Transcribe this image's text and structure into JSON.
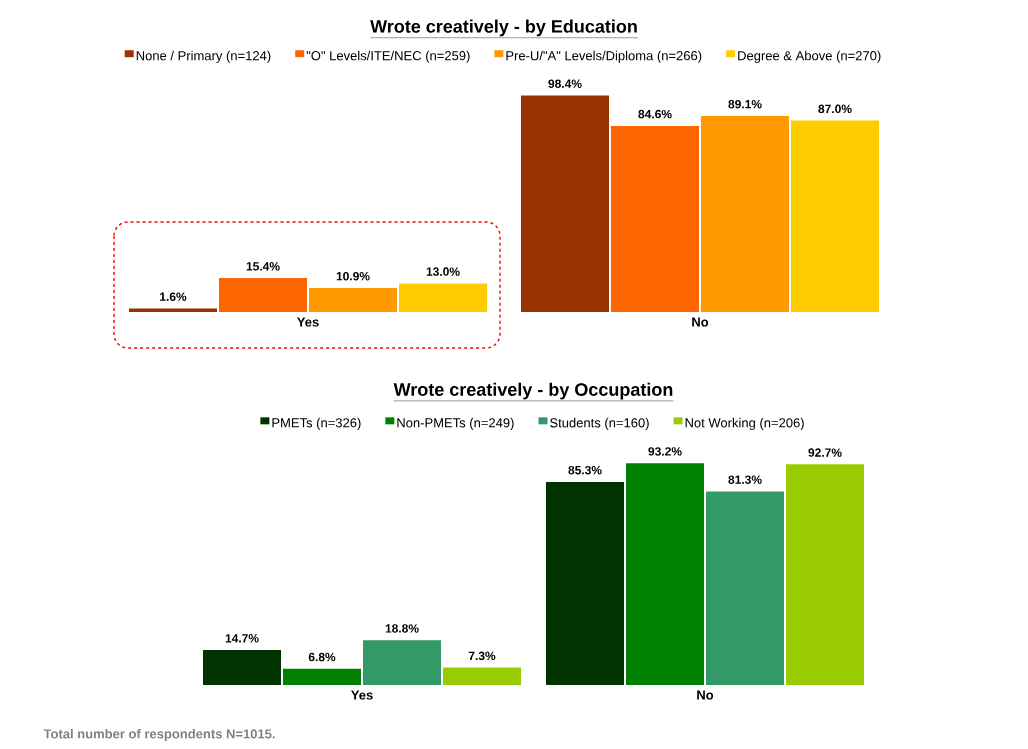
{
  "chart_data": [
    {
      "type": "bar",
      "title": "Wrote creatively - by Education",
      "categories": [
        "Yes",
        "No"
      ],
      "legend": "top",
      "series": [
        {
          "name": "None / Primary (n=124)",
          "color": "#993300",
          "values": [
            1.6,
            98.4
          ],
          "value_labels": [
            "1.6%",
            "98.4%"
          ]
        },
        {
          "name": "\"O\" Levels/ITE/NEC (n=259)",
          "color": "#ff6600",
          "values": [
            15.4,
            84.6
          ],
          "value_labels": [
            "15.4%",
            "84.6%"
          ]
        },
        {
          "name": "Pre-U/\"A\" Levels/Diploma (n=266)",
          "color": "#ff9900",
          "values": [
            10.9,
            89.1
          ],
          "value_labels": [
            "10.9%",
            "89.1%"
          ]
        },
        {
          "name": "Degree & Above (n=270)",
          "color": "#ffcc00",
          "values": [
            13.0,
            87.0
          ],
          "value_labels": [
            "13.0%",
            "87.0%"
          ]
        }
      ]
    },
    {
      "type": "bar",
      "title": "Wrote creatively - by Occupation",
      "categories": [
        "Yes",
        "No"
      ],
      "legend": "top",
      "annotations": [
        "Total number of respondents N=1015."
      ],
      "series": [
        {
          "name": "PMETs (n=326)",
          "color": "#003300",
          "values": [
            14.7,
            85.3
          ],
          "value_labels": [
            "14.7%",
            "85.3%"
          ]
        },
        {
          "name": "Non-PMETs (n=249)",
          "color": "#008000",
          "values": [
            6.8,
            93.2
          ],
          "value_labels": [
            "6.8%",
            "93.2%"
          ]
        },
        {
          "name": "Students (n=160)",
          "color": "#339966",
          "values": [
            18.8,
            81.3
          ],
          "value_labels": [
            "18.8%",
            "81.3%"
          ]
        },
        {
          "name": "Not Working (n=206)",
          "color": "#99cc00",
          "values": [
            7.3,
            92.7
          ],
          "value_labels": [
            "7.3%",
            "92.7%"
          ]
        }
      ]
    }
  ]
}
